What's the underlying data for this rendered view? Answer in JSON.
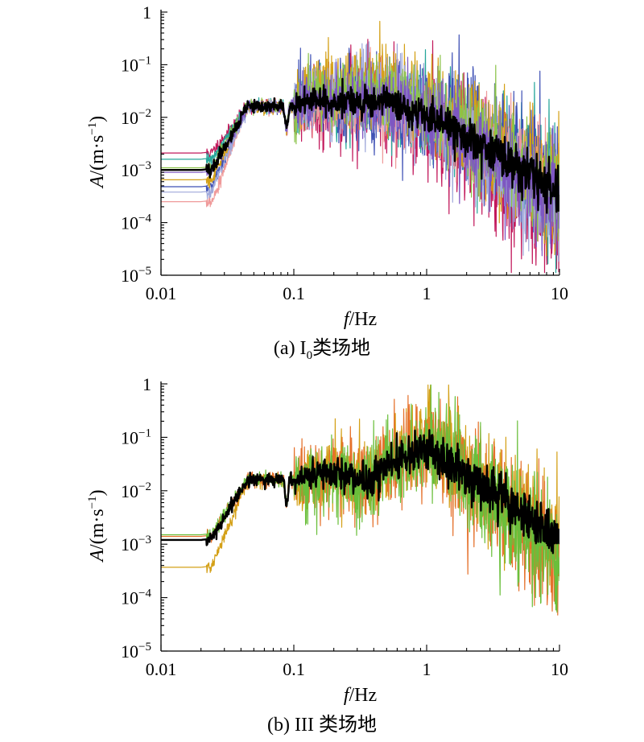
{
  "chart_data": [
    {
      "type": "line",
      "panel": "a",
      "caption": {
        "prefix": "(a) I",
        "sub": "0",
        "suffix": "类场地"
      },
      "xlabel": {
        "italic": "f",
        "rest": "/Hz"
      },
      "ylabel": {
        "italic": "A",
        "rest": "/(m·s",
        "sup": "−1",
        "close": ")"
      },
      "x_scale": "log",
      "y_scale": "log",
      "xlim": [
        0.01,
        10
      ],
      "ylim": [
        1e-05,
        1
      ],
      "x_ticks": [
        {
          "value": 0.01,
          "label": "0.01"
        },
        {
          "value": 0.1,
          "label": "0.1"
        },
        {
          "value": 1,
          "label": "1"
        },
        {
          "value": 10,
          "label": "10"
        }
      ],
      "y_ticks": [
        {
          "value": 1,
          "base": "1",
          "exp": ""
        },
        {
          "value": 0.1,
          "base": "10",
          "exp": "−1"
        },
        {
          "value": 0.01,
          "base": "10",
          "exp": "−2"
        },
        {
          "value": 0.001,
          "base": "10",
          "exp": "−3"
        },
        {
          "value": 0.0001,
          "base": "10",
          "exp": "−4"
        },
        {
          "value": 1e-05,
          "base": "10",
          "exp": "−5"
        }
      ],
      "grid": false,
      "legend": "none",
      "series": [
        {
          "color": "#c2185b",
          "low": 0.0021,
          "jitter": 0.55,
          "hf_end": 0.00018,
          "seed": 11,
          "pk": 0.024
        },
        {
          "color": "#26a69a",
          "low": 0.0016,
          "jitter": 0.45,
          "hf_end": 0.0006,
          "seed": 12,
          "pk": 0.022
        },
        {
          "color": "#3f51b5",
          "low": 0.00048,
          "jitter": 0.5,
          "hf_end": 0.0009,
          "seed": 13,
          "pk": 0.028
        },
        {
          "color": "#ef9a9a",
          "low": 0.00025,
          "jitter": 0.4,
          "hf_end": 0.0007,
          "seed": 14,
          "pk": 0.02
        },
        {
          "color": "#d4a017",
          "low": 0.00065,
          "jitter": 0.45,
          "hf_end": 0.0004,
          "seed": 15,
          "pk": 0.05
        },
        {
          "color": "#9fa8da",
          "low": 0.00038,
          "jitter": 0.45,
          "hf_end": 0.0002,
          "seed": 16,
          "pk": 0.03
        },
        {
          "color": "#8bc34a",
          "low": 0.0011,
          "jitter": 0.4,
          "hf_end": 0.0005,
          "seed": 17,
          "pk": 0.035
        },
        {
          "color": "#7e57c2",
          "low": 0.0009,
          "jitter": 0.4,
          "hf_end": 0.0003,
          "seed": 18,
          "pk": 0.025
        },
        {
          "color": "#000000",
          "low": 0.001,
          "jitter": 0.18,
          "hf_end": 0.00036,
          "seed": 19,
          "pk": 0.022,
          "width": 2.4
        }
      ]
    },
    {
      "type": "line",
      "panel": "b",
      "caption": {
        "prefix": "(b) III 类场地",
        "sub": "",
        "suffix": ""
      },
      "xlabel": {
        "italic": "f",
        "rest": "/Hz"
      },
      "ylabel": {
        "italic": "A",
        "rest": "/(m·s",
        "sup": "−1",
        "close": ")"
      },
      "x_scale": "log",
      "y_scale": "log",
      "xlim": [
        0.01,
        10
      ],
      "ylim": [
        1e-05,
        1
      ],
      "x_ticks": [
        {
          "value": 0.01,
          "label": "0.01"
        },
        {
          "value": 0.1,
          "label": "0.1"
        },
        {
          "value": 1,
          "label": "1"
        },
        {
          "value": 10,
          "label": "10"
        }
      ],
      "y_ticks": [
        {
          "value": 1,
          "base": "1",
          "exp": ""
        },
        {
          "value": 0.1,
          "base": "10",
          "exp": "−1"
        },
        {
          "value": 0.01,
          "base": "10",
          "exp": "−2"
        },
        {
          "value": 0.001,
          "base": "10",
          "exp": "−3"
        },
        {
          "value": 0.0001,
          "base": "10",
          "exp": "−4"
        },
        {
          "value": 1e-05,
          "base": "10",
          "exp": "−5"
        }
      ],
      "grid": false,
      "legend": "none",
      "series": [
        {
          "color": "#d4a017",
          "low": 0.00037,
          "jitter": 0.45,
          "hf_end": 0.0013,
          "seed": 21,
          "pk": 0.13
        },
        {
          "color": "#e5702a",
          "low": 0.0014,
          "jitter": 0.5,
          "hf_end": 0.0007,
          "seed": 22,
          "pk": 0.1
        },
        {
          "color": "#6abf3b",
          "low": 0.0015,
          "jitter": 0.5,
          "hf_end": 0.0008,
          "seed": 23,
          "pk": 0.08
        },
        {
          "color": "#000000",
          "low": 0.0012,
          "jitter": 0.2,
          "hf_end": 0.0013,
          "seed": 24,
          "pk": 0.07,
          "width": 2.4
        }
      ]
    }
  ]
}
